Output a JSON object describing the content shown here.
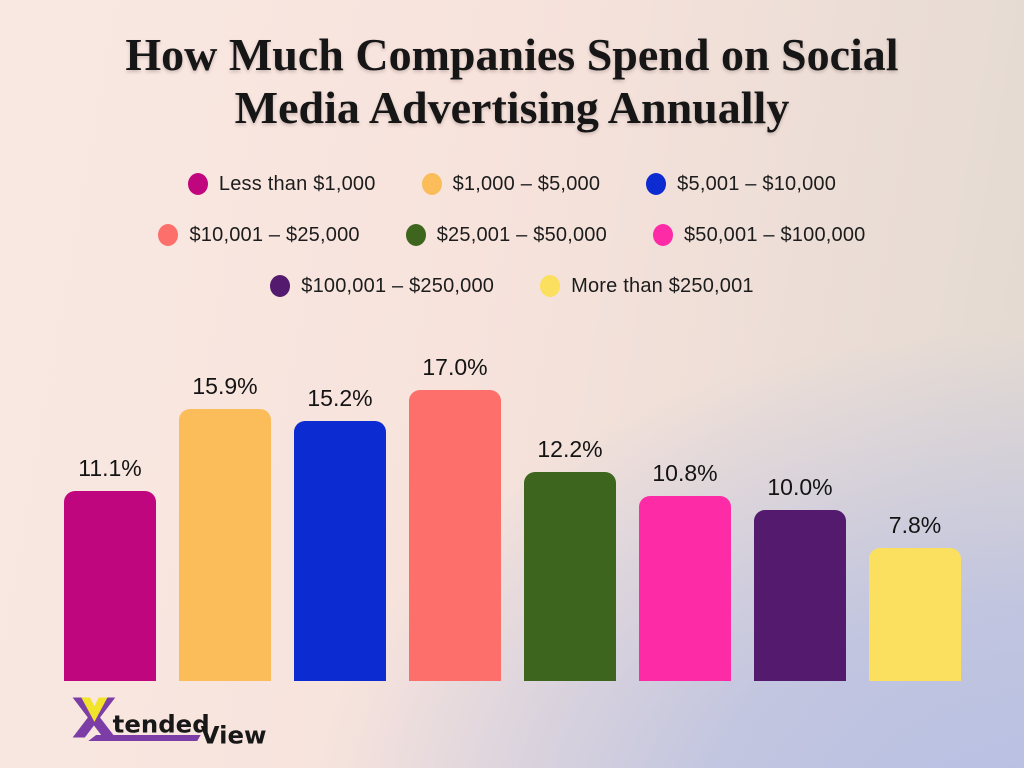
{
  "title": {
    "lines": [
      "How Much Companies Spend on Social",
      "Media Advertising Annually"
    ]
  },
  "legend": {
    "items": [
      {
        "label": "Less than $1,000",
        "color": "#c0067e"
      },
      {
        "label": "$1,000 – $5,000",
        "color": "#fabd59"
      },
      {
        "label": "$5,001 – $10,000",
        "color": "#0c2bd0"
      },
      {
        "label": "$10,001 – $25,000",
        "color": "#fc6f6a"
      },
      {
        "label": "$25,001 – $50,000",
        "color": "#3d651e"
      },
      {
        "label": "$50,001 – $100,000",
        "color": "#fe2ba6"
      },
      {
        "label": "$100,001 – $250,000",
        "color": "#541a6e"
      },
      {
        "label": "More than $250,001",
        "color": "#fae05e"
      }
    ]
  },
  "chart_data": {
    "type": "bar",
    "title": "How Much Companies Spend on Social Media Advertising Annually",
    "categories": [
      "Less than $1,000",
      "$1,000 – $5,000",
      "$5,001 – $10,000",
      "$10,001 – $25,000",
      "$25,001 – $50,000",
      "$50,001 – $100,000",
      "$100,001 – $250,000",
      "More than $250,001"
    ],
    "values": [
      11.1,
      15.9,
      15.2,
      17.0,
      12.2,
      10.8,
      10.0,
      7.8
    ],
    "unit": "%",
    "colors": [
      "#c0067e",
      "#fabd59",
      "#0c2bd0",
      "#fc6f6a",
      "#3d651e",
      "#fe2ba6",
      "#541a6e",
      "#fae05e"
    ],
    "value_labels": [
      "11.1%",
      "15.9%",
      "15.2%",
      "17.0%",
      "12.2%",
      "10.8%",
      "10.0%",
      "7.8%"
    ],
    "xlabel": "",
    "ylabel": "",
    "ylim": [
      0,
      18
    ],
    "grid": false,
    "legend_position": "top",
    "axes_shown": false
  },
  "logo": {
    "text_x": "X",
    "text_tended": "tended",
    "text_view": "View",
    "purple": "#7c3ea6",
    "yellow": "#f2e32b",
    "text_color": "#181818"
  }
}
